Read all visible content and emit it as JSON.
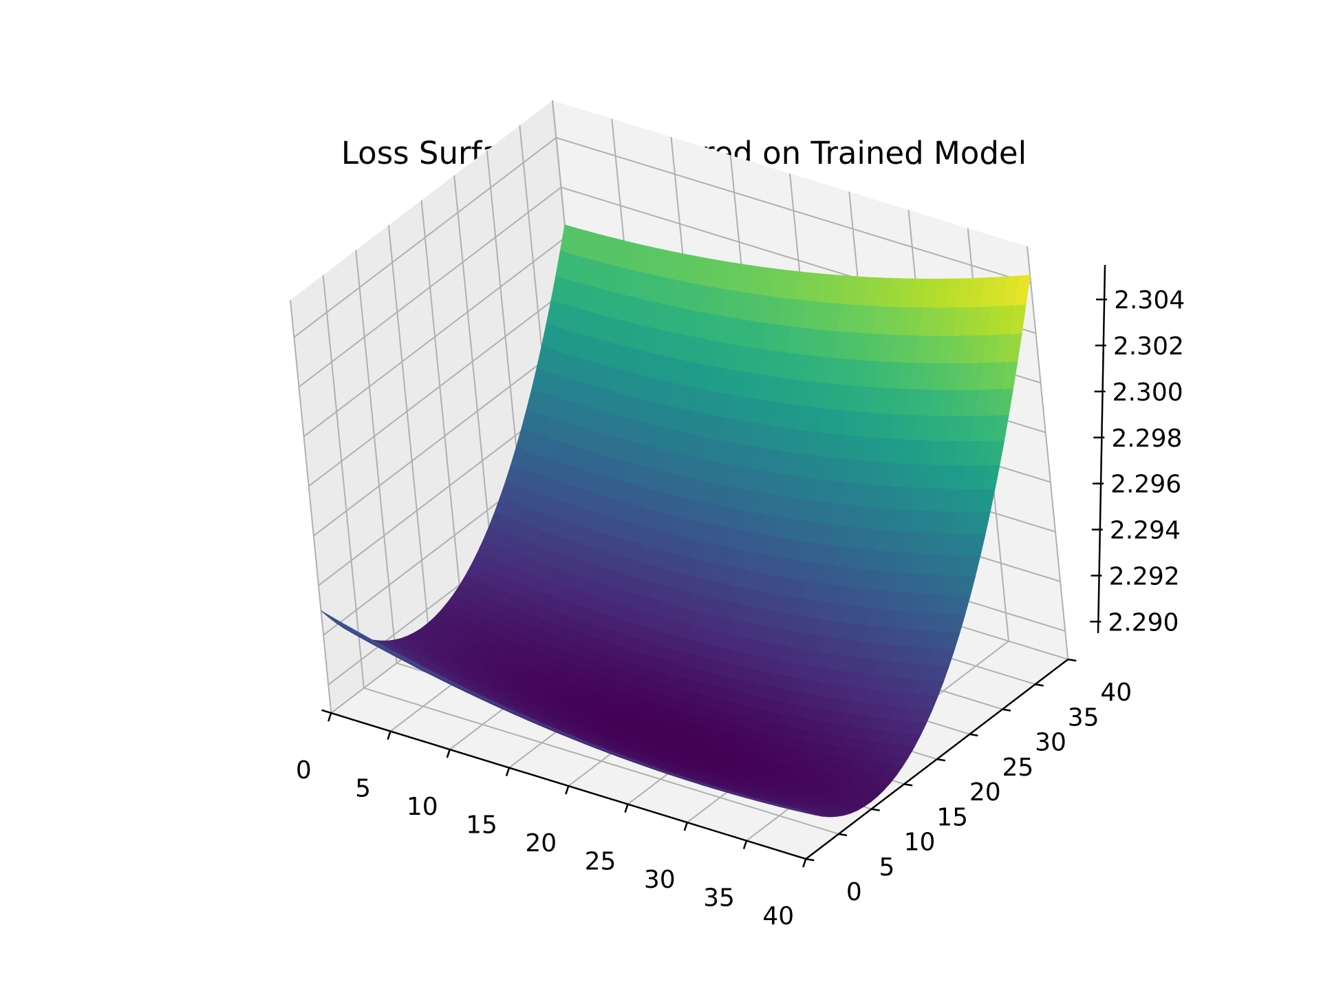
{
  "chart_data": {
    "type": "surface",
    "title": "Loss Surface Plot centered on Trained Model",
    "xlabel": "",
    "ylabel": "",
    "zlabel": "",
    "x_range": [
      0,
      40
    ],
    "y_range": [
      0,
      40
    ],
    "z_range": [
      2.2895,
      2.3055
    ],
    "grid": true,
    "colormap": "viridis",
    "x_ticks": [
      "0",
      "5",
      "10",
      "15",
      "20",
      "25",
      "30",
      "35",
      "40"
    ],
    "y_ticks": [
      "0",
      "5",
      "10",
      "15",
      "20",
      "25",
      "30",
      "35",
      "40"
    ],
    "z_ticks": [
      "2.290",
      "2.292",
      "2.294",
      "2.296",
      "2.298",
      "2.300",
      "2.302",
      "2.304"
    ],
    "surface_corners": {
      "x0_y0": 2.2902,
      "x40_y0": 2.2965,
      "x0_y40": 2.2985,
      "x40_y40": 2.3058
    },
    "minimum_z": 2.2885,
    "minimum_at": [
      22,
      12
    ]
  },
  "colors": {
    "pane": "#f2f2f2",
    "grid": "#b0b0b0",
    "axis": "#000000"
  }
}
